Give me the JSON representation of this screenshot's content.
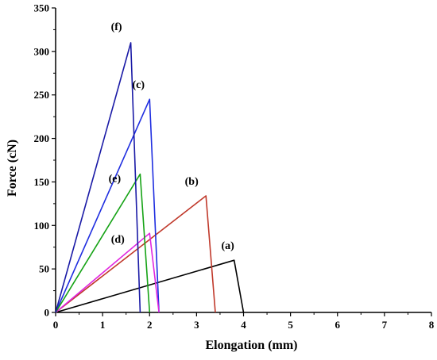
{
  "chart_data": {
    "type": "line",
    "title": "",
    "xlabel": "Elongation (mm)",
    "ylabel": "Force (cN)",
    "xlim": [
      0,
      8
    ],
    "ylim": [
      0,
      350
    ],
    "xticks": [
      "0",
      "1",
      "2",
      "3",
      "4",
      "5",
      "6",
      "7",
      "8"
    ],
    "yticks": [
      "0",
      "50",
      "100",
      "150",
      "200",
      "250",
      "300",
      "350"
    ],
    "grid": false,
    "legend": "none",
    "series": [
      {
        "name": "(a)",
        "color": "#000000",
        "points": [
          [
            0,
            0
          ],
          [
            3.8,
            60
          ],
          [
            4.0,
            0
          ]
        ]
      },
      {
        "name": "(b)",
        "color": "#c0392b",
        "points": [
          [
            0,
            0
          ],
          [
            3.2,
            134
          ],
          [
            3.4,
            0
          ]
        ]
      },
      {
        "name": "(c)",
        "color": "#1f2ee0",
        "points": [
          [
            0,
            0
          ],
          [
            2.0,
            245
          ],
          [
            2.2,
            0
          ]
        ]
      },
      {
        "name": "(d)",
        "color": "#e026e0",
        "points": [
          [
            0,
            0
          ],
          [
            2.0,
            91
          ],
          [
            2.2,
            0
          ]
        ]
      },
      {
        "name": "(e)",
        "color": "#16a316",
        "points": [
          [
            0,
            0
          ],
          [
            1.8,
            159
          ],
          [
            2.0,
            0
          ]
        ]
      },
      {
        "name": "(f)",
        "color": "#1a1aa6",
        "points": [
          [
            0,
            0
          ],
          [
            1.6,
            310
          ],
          [
            1.8,
            0
          ]
        ]
      }
    ]
  }
}
